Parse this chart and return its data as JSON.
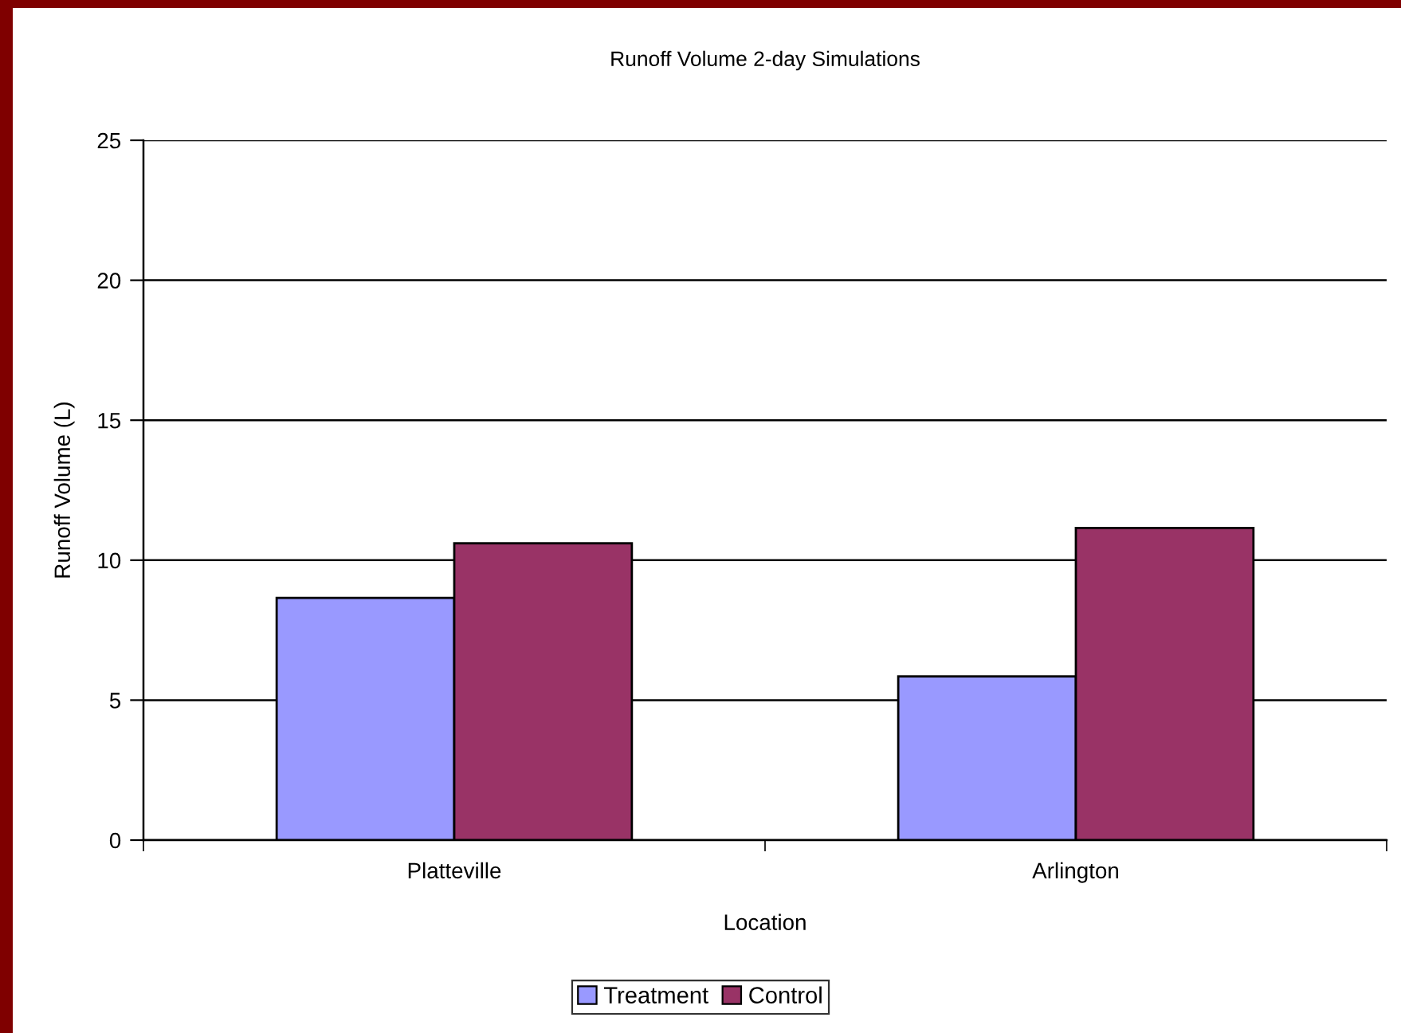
{
  "chart_data": {
    "type": "bar",
    "title": "Runoff Volume 2-day Simulations",
    "xlabel": "Location",
    "ylabel": "Runoff Volume (L)",
    "categories": [
      "Platteville",
      "Arlington"
    ],
    "series": [
      {
        "name": "Treatment",
        "color": "#9999ff",
        "values": [
          8.65,
          5.85
        ]
      },
      {
        "name": "Control",
        "color": "#993366",
        "values": [
          10.6,
          11.15
        ]
      }
    ],
    "ylim": [
      0,
      25
    ],
    "yticks": [
      0,
      5,
      10,
      15,
      20,
      25
    ],
    "grid": "y",
    "legend": "bottom"
  }
}
